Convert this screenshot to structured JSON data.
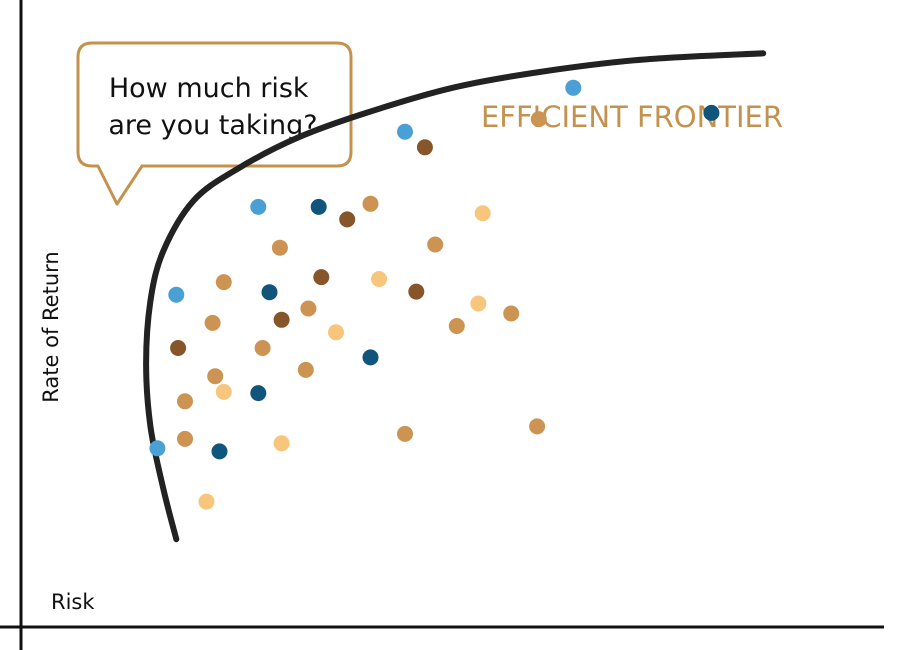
{
  "chart_data": {
    "type": "scatter",
    "title": "EFFICIENT FRONTIER",
    "xlabel": "Risk",
    "ylabel": "Rate of Return",
    "annotation": "How much risk are you taking?",
    "annotation_lines": [
      "How much risk",
      "are you taking?"
    ],
    "xlim": [
      0,
      100
    ],
    "ylim": [
      0,
      100
    ],
    "grid": false,
    "frontier_curve": {
      "color": "#222222",
      "x": [
        18,
        16.5,
        15,
        14.5,
        15,
        16.5,
        20,
        25,
        32,
        40,
        50,
        60,
        72,
        86
      ],
      "y": [
        14,
        22,
        32,
        42,
        52,
        60,
        68,
        73,
        78,
        82,
        86,
        88.5,
        90.5,
        91.5
      ]
    },
    "series": [
      {
        "color": "#4a9fd4",
        "points": [
          [
            15.8,
            28.5
          ],
          [
            18,
            53
          ],
          [
            27.5,
            67
          ],
          [
            44.5,
            79
          ],
          [
            64,
            86
          ]
        ]
      },
      {
        "color": "#11557c",
        "points": [
          [
            34.5,
            67
          ],
          [
            28.8,
            53.4
          ],
          [
            40.5,
            43
          ],
          [
            27.5,
            37.3
          ],
          [
            23,
            28
          ],
          [
            80,
            82
          ]
        ]
      },
      {
        "color": "#86562a",
        "points": [
          [
            18.2,
            44.5
          ],
          [
            30.2,
            49
          ],
          [
            34.8,
            55.8
          ],
          [
            37.8,
            65
          ],
          [
            46.8,
            76.5
          ],
          [
            45.8,
            53.5
          ]
        ]
      },
      {
        "color": "#cc9352",
        "points": [
          [
            22.5,
            40
          ],
          [
            19,
            36
          ],
          [
            22.2,
            48.5
          ],
          [
            23.5,
            55
          ],
          [
            30,
            60.5
          ],
          [
            28,
            44.5
          ],
          [
            33.3,
            50.8
          ],
          [
            33,
            41
          ],
          [
            19,
            30
          ],
          [
            40.5,
            67.5
          ],
          [
            48,
            61
          ],
          [
            50.5,
            48
          ],
          [
            56.8,
            50
          ],
          [
            60,
            81
          ],
          [
            44.5,
            30.8
          ],
          [
            59.8,
            32
          ]
        ]
      },
      {
        "color": "#f7c57c",
        "points": [
          [
            23.5,
            37.5
          ],
          [
            30.2,
            29.3
          ],
          [
            36.5,
            47
          ],
          [
            41.5,
            55.5
          ],
          [
            53.5,
            66
          ],
          [
            53,
            51.6
          ],
          [
            21.5,
            20
          ]
        ]
      }
    ]
  },
  "colors": {
    "accent": "#c4924d",
    "axis": "#111111",
    "text": "#111111"
  }
}
